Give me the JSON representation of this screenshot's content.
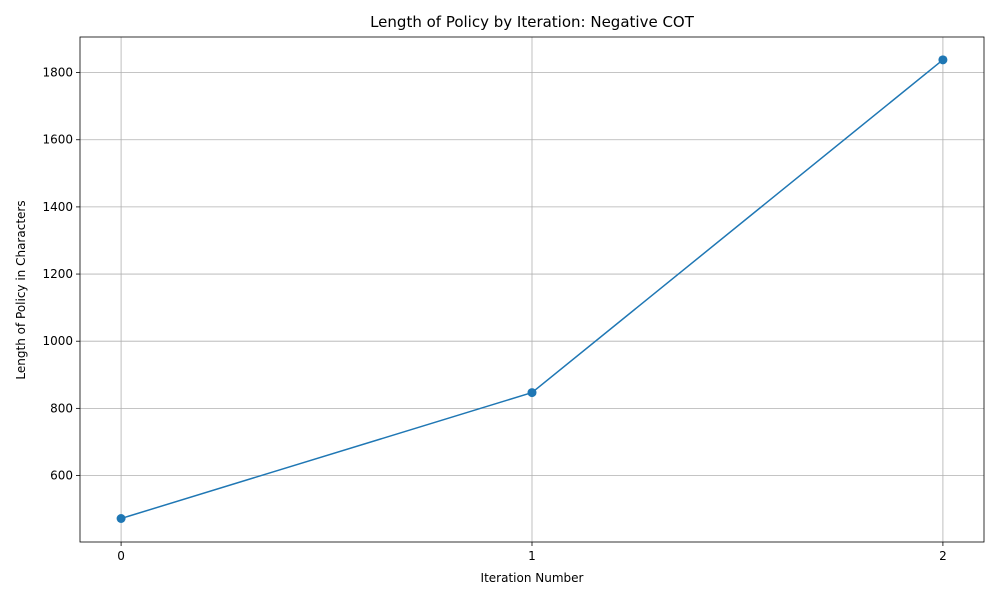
{
  "chart_data": {
    "type": "line",
    "title": "Length of Policy by Iteration: Negative COT",
    "xlabel": "Iteration Number",
    "ylabel": "Length of Policy in Characters",
    "x": [
      0,
      1,
      2
    ],
    "xticks": [
      0,
      1,
      2
    ],
    "xtick_labels": [
      "0",
      "1",
      "2"
    ],
    "xlim": [
      -0.1,
      2.1
    ],
    "yticks": [
      600,
      800,
      1000,
      1200,
      1400,
      1600,
      1800
    ],
    "ytick_labels": [
      "600",
      "800",
      "1000",
      "1200",
      "1400",
      "1600",
      "1800"
    ],
    "ylim": [
      402,
      1906
    ],
    "grid": true,
    "legend": "none",
    "series": [
      {
        "name": "Length of Policy",
        "values": [
          472,
          847,
          1838
        ],
        "color": "#1f77b4",
        "marker": "circle"
      }
    ]
  }
}
